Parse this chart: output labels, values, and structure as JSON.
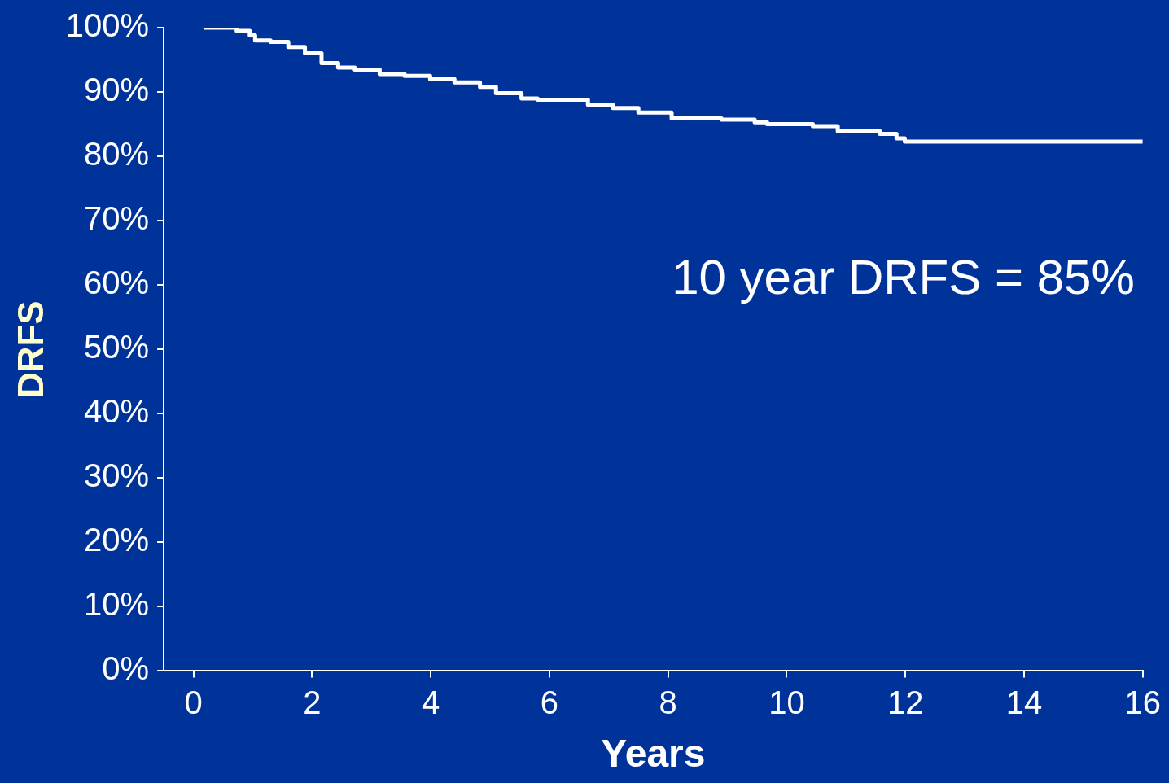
{
  "chart_data": {
    "type": "step",
    "ylabel": "DRFS",
    "xlabel": "Years",
    "annotations": [
      "10 year DRFS = 85%"
    ],
    "x": [
      0.17,
      0.73,
      0.95,
      1.04,
      1.3,
      1.6,
      1.88,
      2.16,
      2.44,
      2.72,
      3.14,
      3.56,
      3.99,
      4.4,
      4.83,
      5.1,
      5.53,
      5.8,
      6.65,
      7.07,
      7.5,
      8.06,
      8.9,
      9.46,
      9.67,
      10.44,
      10.86,
      11.57,
      11.85,
      11.99,
      16
    ],
    "series": [
      {
        "color": "#ffffff",
        "values": [
          100,
          99.5,
          98.8,
          98,
          97.8,
          97,
          96,
          94.5,
          93.8,
          93.5,
          92.8,
          92.5,
          92,
          91.5,
          90.8,
          89.8,
          89,
          88.8,
          88,
          87.5,
          86.8,
          85.9,
          85.7,
          85.3,
          85,
          84.7,
          83.9,
          83.5,
          82.8,
          82.3,
          82.3
        ]
      }
    ],
    "xlim": [
      -0.5,
      16
    ],
    "xticks": [
      0,
      2,
      4,
      6,
      8,
      10,
      12,
      14,
      16
    ],
    "ylim": [
      0,
      100
    ],
    "yticks": [
      {
        "value": 0,
        "label": "0%"
      },
      {
        "value": 10,
        "label": "10%"
      },
      {
        "value": 20,
        "label": "20%"
      },
      {
        "value": 30,
        "label": "30%"
      },
      {
        "value": 40,
        "label": "40%"
      },
      {
        "value": 50,
        "label": "50%"
      },
      {
        "value": 60,
        "label": "60%"
      },
      {
        "value": 70,
        "label": "70%"
      },
      {
        "value": 80,
        "label": "80%"
      },
      {
        "value": 90,
        "label": "90%"
      },
      {
        "value": 100,
        "label": "100%"
      }
    ],
    "grid": false,
    "legend": false,
    "marker": "none"
  }
}
